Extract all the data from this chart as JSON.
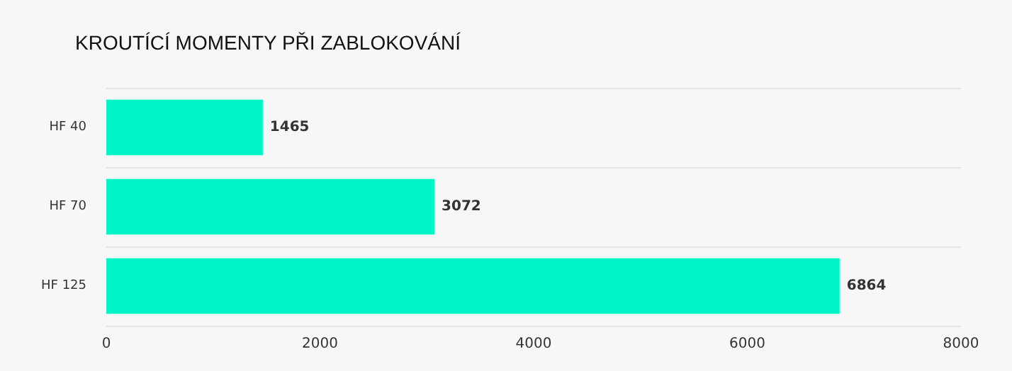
{
  "chart_data": {
    "type": "bar",
    "orientation": "horizontal",
    "title": "KROUTÍCÍ MOMENTY PŘI ZABLOKOVÁNÍ",
    "categories": [
      "HF 40",
      "HF 70",
      "HF 125"
    ],
    "values": [
      1465,
      3072,
      6864
    ],
    "color": "#00f5c8",
    "xlim": [
      0,
      8000
    ],
    "xticks": [
      0,
      2000,
      4000,
      6000,
      8000
    ],
    "grid": "y",
    "data_labels": true
  }
}
